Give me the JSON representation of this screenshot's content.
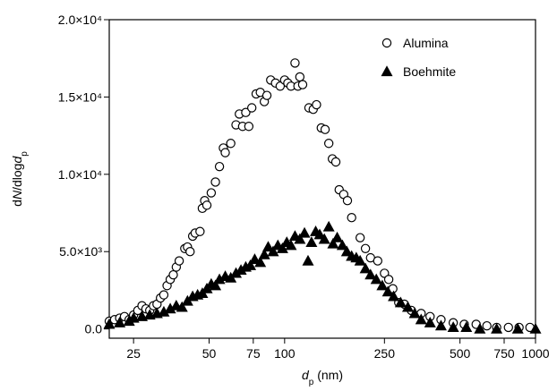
{
  "chart_data": {
    "type": "scatter",
    "x_label": [
      "d",
      "p",
      " (nm)"
    ],
    "y_label": [
      "d",
      "N",
      "/dlog",
      "d",
      "p"
    ],
    "xscale": "log",
    "xlim": [
      20,
      1000
    ],
    "ylim": [
      -600,
      20000
    ],
    "xticks": [
      25,
      50,
      75,
      100,
      250,
      500,
      750,
      1000
    ],
    "yticks": [
      {
        "value": 0,
        "label": "0.0"
      },
      {
        "value": 5000,
        "label": "5.0×10³"
      },
      {
        "value": 10000,
        "label": "1.0×10⁴"
      },
      {
        "value": 15000,
        "label": "1.5×10⁴"
      },
      {
        "value": 20000,
        "label": "2.0×10⁴"
      }
    ],
    "legend": "upper right",
    "series": [
      {
        "name": "Alumina",
        "marker": "circle",
        "color": "#000000",
        "x": [
          20,
          21,
          22,
          23,
          24,
          25,
          26,
          27,
          28,
          29,
          30,
          31,
          32,
          33,
          34,
          35,
          36,
          37,
          38,
          40,
          41,
          42,
          43,
          44,
          46,
          47,
          48,
          49,
          51,
          53,
          55,
          57,
          58,
          61,
          64,
          66,
          68,
          70,
          72,
          74,
          77,
          80,
          83,
          85,
          88,
          92,
          96,
          100,
          103,
          106,
          110,
          113,
          115,
          118,
          125,
          130,
          134,
          140,
          145,
          150,
          155,
          160,
          165,
          172,
          178,
          185,
          200,
          210,
          220,
          235,
          250,
          260,
          270,
          285,
          300,
          320,
          350,
          380,
          420,
          470,
          520,
          580,
          640,
          700,
          780,
          860,
          950
        ],
        "values": [
          500,
          600,
          700,
          800,
          600,
          900,
          1200,
          1500,
          1300,
          1200,
          1500,
          1600,
          2000,
          2200,
          2800,
          3200,
          3500,
          4000,
          4400,
          5200,
          5300,
          5000,
          6000,
          6200,
          6300,
          7800,
          8300,
          8000,
          8800,
          9500,
          10500,
          11700,
          11400,
          12000,
          13200,
          13900,
          13100,
          14000,
          13100,
          14300,
          15200,
          15300,
          14700,
          15100,
          16100,
          15900,
          15700,
          16100,
          15900,
          15700,
          17200,
          15700,
          16300,
          15800,
          14300,
          14200,
          14500,
          13000,
          12900,
          12000,
          11000,
          10800,
          9000,
          8700,
          8300,
          7200,
          5900,
          5200,
          4600,
          4400,
          3600,
          3200,
          2600,
          1700,
          1600,
          1200,
          1000,
          800,
          600,
          400,
          300,
          300,
          200,
          100,
          100,
          100,
          100
        ]
      },
      {
        "name": "Boehmite",
        "marker": "triangle",
        "color": "#000000",
        "x": [
          20,
          22,
          24,
          25,
          27,
          29,
          31,
          33,
          35,
          37,
          39,
          41,
          43,
          45,
          47,
          49,
          51,
          53,
          55,
          58,
          61,
          64,
          67,
          70,
          73,
          76,
          80,
          83,
          86,
          90,
          94,
          98,
          102,
          106,
          110,
          115,
          120,
          124,
          128,
          133,
          138,
          144,
          150,
          156,
          162,
          170,
          177,
          185,
          193,
          200,
          210,
          220,
          232,
          245,
          258,
          272,
          290,
          310,
          330,
          350,
          380,
          420,
          470,
          530,
          600,
          700,
          850,
          1000
        ],
        "values": [
          300,
          400,
          500,
          700,
          800,
          900,
          1000,
          1100,
          1300,
          1500,
          1400,
          1800,
          2100,
          2200,
          2300,
          2600,
          2900,
          2800,
          3200,
          3400,
          3300,
          3600,
          3800,
          4000,
          4100,
          4500,
          4300,
          4800,
          5300,
          5000,
          5400,
          5200,
          5600,
          5400,
          6000,
          5800,
          6200,
          4400,
          5600,
          6300,
          6100,
          5800,
          6600,
          5500,
          5900,
          5400,
          5000,
          4700,
          4600,
          4400,
          3900,
          3500,
          3200,
          2800,
          2400,
          2100,
          1700,
          1400,
          1000,
          600,
          400,
          200,
          100,
          100,
          0,
          0,
          0,
          0
        ]
      }
    ]
  }
}
